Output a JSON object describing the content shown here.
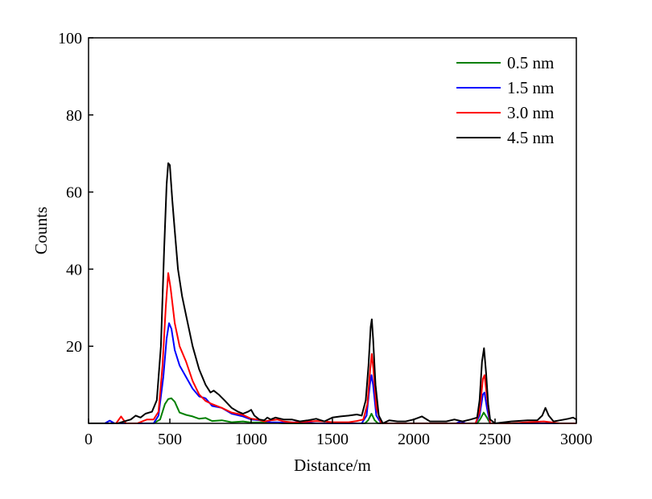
{
  "chart_data": {
    "type": "line",
    "title": "",
    "xlabel": "Distance/m",
    "ylabel": "Counts",
    "xlim": [
      0,
      3000
    ],
    "ylim": [
      0,
      100
    ],
    "x_ticks": [
      "0",
      "500",
      "1000",
      "1500",
      "2000",
      "2500",
      "3000"
    ],
    "y_ticks": [
      "20",
      "40",
      "60",
      "80",
      "100"
    ],
    "grid": false,
    "legend_position": "top-right",
    "series": [
      {
        "name": "0.5 nm",
        "color": "#008000",
        "points": [
          [
            0,
            0
          ],
          [
            150,
            0
          ],
          [
            400,
            0
          ],
          [
            440,
            1
          ],
          [
            470,
            5
          ],
          [
            490,
            6.3
          ],
          [
            510,
            6.5
          ],
          [
            530,
            5.6
          ],
          [
            560,
            2.8
          ],
          [
            600,
            2.2
          ],
          [
            640,
            1.8
          ],
          [
            680,
            1.2
          ],
          [
            720,
            1.4
          ],
          [
            760,
            0.6
          ],
          [
            820,
            0.8
          ],
          [
            880,
            0.3
          ],
          [
            950,
            0.5
          ],
          [
            1000,
            0.2
          ],
          [
            1100,
            0.3
          ],
          [
            1200,
            0
          ],
          [
            1700,
            0
          ],
          [
            1720,
            0.8
          ],
          [
            1740,
            2.5
          ],
          [
            1760,
            0.8
          ],
          [
            1780,
            0
          ],
          [
            2390,
            0
          ],
          [
            2410,
            1.2
          ],
          [
            2430,
            2.8
          ],
          [
            2450,
            1.5
          ],
          [
            2470,
            0
          ],
          [
            3000,
            0
          ]
        ]
      },
      {
        "name": "1.5 nm",
        "color": "#0000ff",
        "points": [
          [
            0,
            0
          ],
          [
            100,
            0
          ],
          [
            130,
            0.7
          ],
          [
            160,
            0
          ],
          [
            400,
            0
          ],
          [
            430,
            2
          ],
          [
            460,
            12
          ],
          [
            480,
            22
          ],
          [
            495,
            26
          ],
          [
            510,
            24.5
          ],
          [
            530,
            19
          ],
          [
            560,
            15
          ],
          [
            600,
            12
          ],
          [
            640,
            9
          ],
          [
            680,
            7
          ],
          [
            720,
            6.5
          ],
          [
            760,
            4.5
          ],
          [
            820,
            4
          ],
          [
            880,
            2.5
          ],
          [
            950,
            1.8
          ],
          [
            1000,
            1
          ],
          [
            1060,
            0.8
          ],
          [
            1120,
            0.3
          ],
          [
            1200,
            0.2
          ],
          [
            1300,
            0.3
          ],
          [
            1400,
            0
          ],
          [
            1680,
            0
          ],
          [
            1710,
            2
          ],
          [
            1730,
            10
          ],
          [
            1740,
            12.5
          ],
          [
            1750,
            10
          ],
          [
            1770,
            2
          ],
          [
            1800,
            0
          ],
          [
            2260,
            0
          ],
          [
            2290,
            0.5
          ],
          [
            2320,
            0
          ],
          [
            2380,
            0
          ],
          [
            2405,
            2
          ],
          [
            2425,
            7.5
          ],
          [
            2435,
            8
          ],
          [
            2450,
            4
          ],
          [
            2470,
            0
          ],
          [
            3000,
            0
          ]
        ]
      },
      {
        "name": "3.0 nm",
        "color": "#ff0000",
        "points": [
          [
            0,
            0
          ],
          [
            170,
            0
          ],
          [
            200,
            1.8
          ],
          [
            230,
            0
          ],
          [
            300,
            0
          ],
          [
            360,
            1
          ],
          [
            400,
            1
          ],
          [
            430,
            3
          ],
          [
            455,
            15
          ],
          [
            475,
            30
          ],
          [
            490,
            39
          ],
          [
            505,
            35
          ],
          [
            530,
            26
          ],
          [
            560,
            20
          ],
          [
            600,
            16
          ],
          [
            640,
            11
          ],
          [
            680,
            7.5
          ],
          [
            720,
            5.8
          ],
          [
            760,
            5
          ],
          [
            820,
            4
          ],
          [
            880,
            2.8
          ],
          [
            950,
            2.2
          ],
          [
            1000,
            1.2
          ],
          [
            1040,
            1
          ],
          [
            1080,
            0.5
          ],
          [
            1120,
            0.8
          ],
          [
            1160,
            1
          ],
          [
            1200,
            0.5
          ],
          [
            1260,
            0.2
          ],
          [
            1400,
            0.6
          ],
          [
            1450,
            0.5
          ],
          [
            1500,
            0.3
          ],
          [
            1600,
            0.3
          ],
          [
            1650,
            0.6
          ],
          [
            1690,
            1
          ],
          [
            1715,
            5
          ],
          [
            1732,
            14
          ],
          [
            1742,
            18
          ],
          [
            1752,
            14
          ],
          [
            1770,
            4
          ],
          [
            1800,
            0
          ],
          [
            2380,
            0
          ],
          [
            2405,
            3
          ],
          [
            2425,
            11.5
          ],
          [
            2435,
            12.5
          ],
          [
            2450,
            7
          ],
          [
            2470,
            0
          ],
          [
            2600,
            0
          ],
          [
            2700,
            0.3
          ],
          [
            2800,
            0.5
          ],
          [
            2900,
            0
          ],
          [
            3000,
            0
          ]
        ]
      },
      {
        "name": "4.5 nm",
        "color": "#000000",
        "points": [
          [
            0,
            0
          ],
          [
            180,
            0
          ],
          [
            220,
            0.5
          ],
          [
            260,
            1
          ],
          [
            290,
            2
          ],
          [
            320,
            1.5
          ],
          [
            350,
            2.5
          ],
          [
            390,
            3
          ],
          [
            420,
            6
          ],
          [
            445,
            20
          ],
          [
            465,
            45
          ],
          [
            480,
            62
          ],
          [
            490,
            67.5
          ],
          [
            500,
            67
          ],
          [
            515,
            58
          ],
          [
            530,
            50
          ],
          [
            550,
            40
          ],
          [
            575,
            33
          ],
          [
            600,
            28
          ],
          [
            640,
            20
          ],
          [
            680,
            14
          ],
          [
            720,
            10
          ],
          [
            750,
            8
          ],
          [
            770,
            8.5
          ],
          [
            800,
            7.5
          ],
          [
            840,
            5.8
          ],
          [
            880,
            4
          ],
          [
            920,
            3
          ],
          [
            950,
            2.5
          ],
          [
            980,
            3
          ],
          [
            1000,
            3.5
          ],
          [
            1020,
            2
          ],
          [
            1050,
            1
          ],
          [
            1080,
            0.8
          ],
          [
            1100,
            1.5
          ],
          [
            1120,
            1
          ],
          [
            1150,
            1.5
          ],
          [
            1200,
            1
          ],
          [
            1250,
            1
          ],
          [
            1300,
            0.5
          ],
          [
            1350,
            0.8
          ],
          [
            1400,
            1.2
          ],
          [
            1450,
            0.5
          ],
          [
            1500,
            1.5
          ],
          [
            1550,
            1.8
          ],
          [
            1600,
            2
          ],
          [
            1650,
            2.3
          ],
          [
            1680,
            2
          ],
          [
            1705,
            6
          ],
          [
            1722,
            15
          ],
          [
            1735,
            25
          ],
          [
            1742,
            27
          ],
          [
            1750,
            22
          ],
          [
            1765,
            10
          ],
          [
            1785,
            2
          ],
          [
            1810,
            0
          ],
          [
            1850,
            0.8
          ],
          [
            1900,
            0.5
          ],
          [
            1950,
            0.5
          ],
          [
            2000,
            1
          ],
          [
            2050,
            1.8
          ],
          [
            2100,
            0.5
          ],
          [
            2200,
            0.5
          ],
          [
            2250,
            1
          ],
          [
            2300,
            0.5
          ],
          [
            2350,
            1
          ],
          [
            2390,
            1.5
          ],
          [
            2405,
            6
          ],
          [
            2420,
            16
          ],
          [
            2432,
            19.5
          ],
          [
            2445,
            13
          ],
          [
            2458,
            5
          ],
          [
            2470,
            1
          ],
          [
            2500,
            0
          ],
          [
            2600,
            0.5
          ],
          [
            2700,
            0.8
          ],
          [
            2760,
            0.8
          ],
          [
            2790,
            2
          ],
          [
            2810,
            4
          ],
          [
            2830,
            2
          ],
          [
            2860,
            0.5
          ],
          [
            2900,
            0.8
          ],
          [
            2950,
            1.2
          ],
          [
            2980,
            1.5
          ],
          [
            3000,
            1
          ]
        ]
      }
    ]
  }
}
